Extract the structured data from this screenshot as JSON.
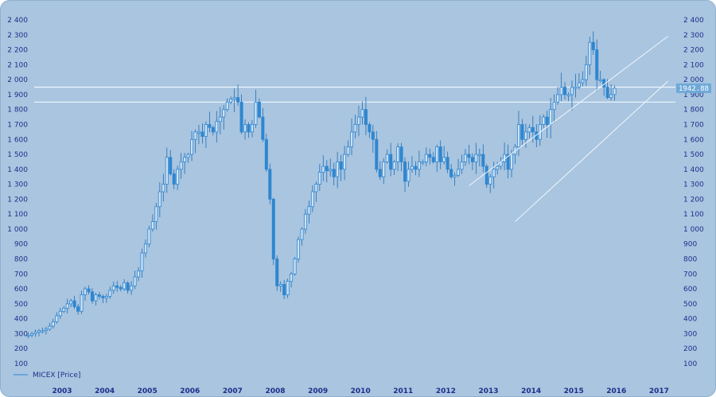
{
  "chart_data": {
    "type": "candlestick",
    "title": "",
    "xlabel": "",
    "ylabel": "",
    "ylim": [
      40,
      2440
    ],
    "y_ticks": [
      100,
      200,
      300,
      400,
      500,
      600,
      700,
      800,
      900,
      1000,
      1100,
      1200,
      1300,
      1400,
      1500,
      1600,
      1700,
      1800,
      1900,
      2000,
      2100,
      2200,
      2300,
      2400
    ],
    "y_tick_labels": [
      "100",
      "200",
      "300",
      "400",
      "500",
      "600",
      "700",
      "800",
      "900",
      "1 000",
      "1 100",
      "1 200",
      "1 300",
      "1 400",
      "1 500",
      "1 600",
      "1 700",
      "1 800",
      "1 900",
      "2 000",
      "2 100",
      "2 200",
      "2 300",
      "2 400"
    ],
    "x_ticks": [
      "2003",
      "2004",
      "2005",
      "2006",
      "2007",
      "2008",
      "2009",
      "2010",
      "2011",
      "2012",
      "2013",
      "2014",
      "2015",
      "2016",
      "2017"
    ],
    "legend": {
      "position": "bottom-left",
      "entries": [
        "MICEX [Price]"
      ]
    },
    "last_price_label": "1942.88",
    "grid": false,
    "horizontal_levels": [
      1950,
      1850
    ],
    "channel_lines": [
      {
        "from": [
          "2013-01",
          1290
        ],
        "to": [
          "2017-09",
          2290
        ]
      },
      {
        "from": [
          "2014-02",
          1050
        ],
        "to": [
          "2017-09",
          1990
        ]
      }
    ],
    "series": [
      {
        "style": "monthly candles",
        "start": "2002-09",
        "close_path": [
          290,
          300,
          310,
          320,
          320,
          330,
          350,
          380,
          420,
          450,
          470,
          500,
          520,
          480,
          450,
          560,
          600,
          580,
          520,
          560,
          550,
          540,
          550,
          590,
          620,
          610,
          600,
          640,
          590,
          620,
          680,
          720,
          840,
          900,
          1000,
          1050,
          1150,
          1250,
          1300,
          1480,
          1370,
          1300,
          1400,
          1450,
          1480,
          1500,
          1600,
          1650,
          1650,
          1620,
          1700,
          1680,
          1650,
          1720,
          1750,
          1800,
          1850,
          1870,
          1880,
          1850,
          1650,
          1700,
          1650,
          1700,
          1850,
          1750,
          1600,
          1400,
          1200,
          800,
          620,
          630,
          560,
          650,
          700,
          800,
          930,
          1000,
          1100,
          1150,
          1250,
          1300,
          1380,
          1420,
          1390,
          1400,
          1350,
          1450,
          1400,
          1500,
          1550,
          1650,
          1700,
          1750,
          1800,
          1700,
          1650,
          1600,
          1400,
          1350,
          1450,
          1500,
          1400,
          1450,
          1550,
          1450,
          1320,
          1400,
          1420,
          1400,
          1450,
          1450,
          1500,
          1480,
          1450,
          1550,
          1450,
          1480,
          1400,
          1350,
          1360,
          1400,
          1450,
          1500,
          1480,
          1450,
          1500,
          1500,
          1420,
          1300,
          1350,
          1400,
          1420,
          1450,
          1500,
          1400,
          1500,
          1550,
          1700,
          1600,
          1650,
          1680,
          1650,
          1600,
          1700,
          1750,
          1700,
          1800,
          1850,
          1900,
          1950,
          1900,
          1900,
          1950,
          1950,
          1980,
          2000,
          2100,
          2250,
          2200,
          2000,
          2000,
          1950,
          1880,
          1900,
          1942.88
        ],
        "note": "approximate monthly closes read from the chart"
      }
    ]
  },
  "colors": {
    "background": "#a9c5e0",
    "candle": "#2f86cf",
    "wick": "#1f6fb5",
    "level_line": "#f2f7fc",
    "label_text": "#1f2f8a",
    "price_label_bg": "#6ea9d8"
  }
}
